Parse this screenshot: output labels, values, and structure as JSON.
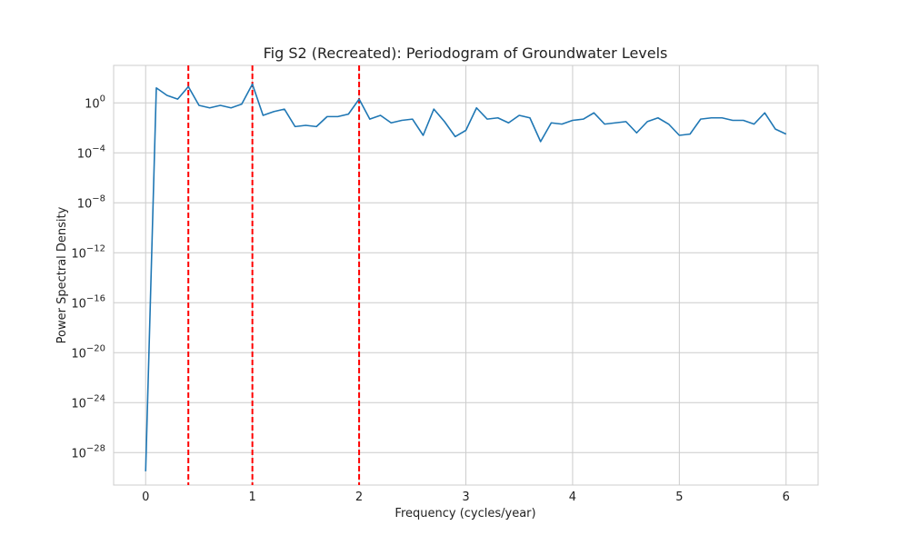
{
  "chart_data": {
    "type": "line",
    "title": "Fig S2 (Recreated): Periodogram of Groundwater Levels",
    "xlabel": "Frequency (cycles/year)",
    "ylabel": "Power Spectral Density",
    "yscale": "log",
    "xlim": [
      -0.3,
      6.3
    ],
    "ylim_exp": [
      -30.6,
      3.0
    ],
    "grid": true,
    "x_ticks": [
      0,
      1,
      2,
      3,
      4,
      5,
      6
    ],
    "x_tick_labels": [
      "0",
      "1",
      "2",
      "3",
      "4",
      "5",
      "6"
    ],
    "y_tick_exponents": [
      0,
      -4,
      -8,
      -12,
      -16,
      -20,
      -24,
      -28
    ],
    "y_tick_labels": [
      "10^0",
      "10^-4",
      "10^-8",
      "10^-12",
      "10^-16",
      "10^-20",
      "10^-24",
      "10^-28"
    ],
    "series": [
      {
        "color": "#1f77b4",
        "x": [
          0.0,
          0.1,
          0.2,
          0.3,
          0.4,
          0.5,
          0.6,
          0.7,
          0.8,
          0.9,
          1.0,
          1.1,
          1.2,
          1.3,
          1.4,
          1.5,
          1.6,
          1.7,
          1.8,
          1.9,
          2.0,
          2.1,
          2.2,
          2.3,
          2.4,
          2.5,
          2.6,
          2.7,
          2.8,
          2.9,
          3.0,
          3.1,
          3.2,
          3.3,
          3.4,
          3.5,
          3.6,
          3.7,
          3.8,
          3.9,
          4.0,
          4.1,
          4.2,
          4.3,
          4.4,
          4.5,
          4.6,
          4.7,
          4.8,
          4.9,
          5.0,
          5.1,
          5.2,
          5.3,
          5.4,
          5.5,
          5.6,
          5.7,
          5.8,
          5.9,
          6.0
        ],
        "log10_power": [
          -29.5,
          1.2,
          0.6,
          0.3,
          1.3,
          -0.2,
          -0.4,
          -0.2,
          -0.4,
          -0.1,
          1.5,
          -1.0,
          -0.7,
          -0.5,
          -1.9,
          -1.8,
          -1.9,
          -1.1,
          -1.1,
          -0.9,
          0.3,
          -1.3,
          -1.0,
          -1.6,
          -1.4,
          -1.3,
          -2.6,
          -0.5,
          -1.5,
          -2.7,
          -2.2,
          -0.4,
          -1.3,
          -1.2,
          -1.6,
          -1.0,
          -1.2,
          -3.1,
          -1.6,
          -1.7,
          -1.4,
          -1.3,
          -0.8,
          -1.7,
          -1.6,
          -1.5,
          -2.4,
          -1.5,
          -1.2,
          -1.7,
          -2.6,
          -2.5,
          -1.3,
          -1.2,
          -1.2,
          -1.4,
          -1.4,
          -1.7,
          -0.8,
          -2.1,
          -2.5
        ]
      }
    ],
    "vlines": {
      "color": "#ff0000",
      "x": [
        0.4,
        1.0,
        2.0
      ]
    }
  }
}
